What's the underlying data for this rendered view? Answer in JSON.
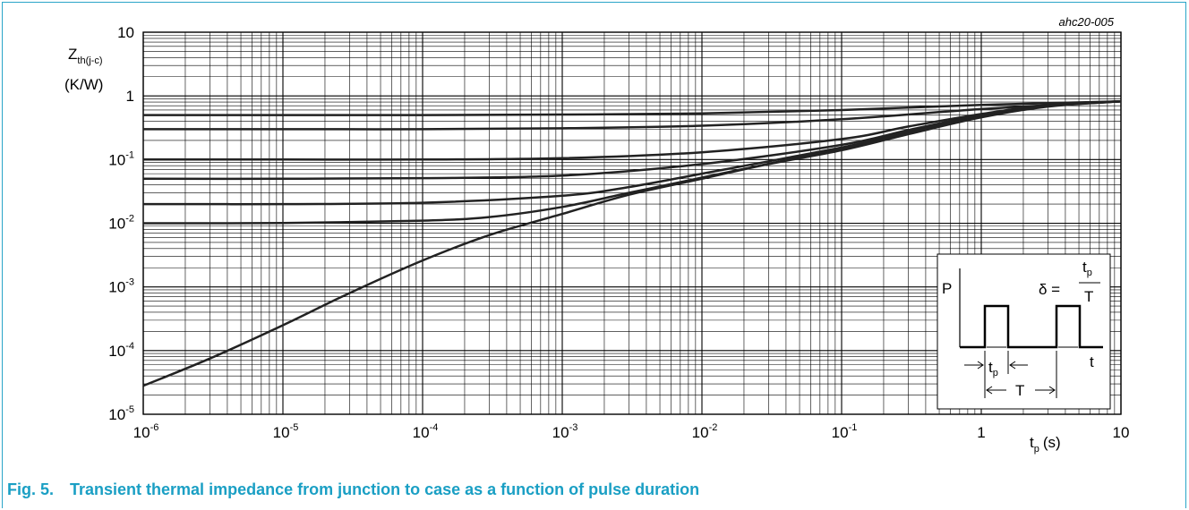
{
  "figure": {
    "ref": "ahc20-005",
    "caption_number": "Fig. 5.",
    "caption_text": "Transient thermal impedance from junction to case as a function of pulse duration"
  },
  "chart_data": {
    "type": "line",
    "title": "",
    "ylabel": "Zth(j-c)",
    "ylabel_main": "Z",
    "ylabel_sub": "th(j-c)",
    "yunit": "(K/W)",
    "xlabel_main": "t",
    "xlabel_sub": "p",
    "xunit": "(s)",
    "xscale": "log",
    "yscale": "log",
    "xlim": [
      1e-06,
      10
    ],
    "ylim": [
      1e-05,
      10
    ],
    "grid": true,
    "x_ticks": [
      {
        "value": 1e-06,
        "base": "10",
        "exp": "-6"
      },
      {
        "value": 1e-05,
        "base": "10",
        "exp": "-5"
      },
      {
        "value": 0.0001,
        "base": "10",
        "exp": "-4"
      },
      {
        "value": 0.001,
        "base": "10",
        "exp": "-3"
      },
      {
        "value": 0.01,
        "base": "10",
        "exp": "-2"
      },
      {
        "value": 0.1,
        "base": "10",
        "exp": "-1"
      },
      {
        "value": 1,
        "base": "1",
        "exp": ""
      },
      {
        "value": 10,
        "base": "10",
        "exp": ""
      }
    ],
    "y_ticks": [
      {
        "value": 1e-05,
        "base": "10",
        "exp": "-5"
      },
      {
        "value": 0.0001,
        "base": "10",
        "exp": "-4"
      },
      {
        "value": 0.001,
        "base": "10",
        "exp": "-3"
      },
      {
        "value": 0.01,
        "base": "10",
        "exp": "-2"
      },
      {
        "value": 0.1,
        "base": "10",
        "exp": "-1"
      },
      {
        "value": 1,
        "base": "1",
        "exp": ""
      },
      {
        "value": 10,
        "base": "10",
        "exp": ""
      }
    ],
    "series": [
      {
        "x": [
          1e-06,
          1e-05,
          0.0001,
          0.001,
          0.01,
          0.1,
          1,
          10
        ],
        "y": [
          0.5,
          0.5,
          0.5,
          0.51,
          0.53,
          0.6,
          0.72,
          0.82
        ]
      },
      {
        "x": [
          1e-06,
          1e-05,
          0.0001,
          0.001,
          0.01,
          0.1,
          1,
          10
        ],
        "y": [
          0.3,
          0.3,
          0.3,
          0.31,
          0.34,
          0.43,
          0.62,
          0.82
        ]
      },
      {
        "x": [
          1e-06,
          1e-05,
          0.0001,
          0.001,
          0.01,
          0.1,
          0.3,
          1,
          3,
          10
        ],
        "y": [
          0.1,
          0.1,
          0.1,
          0.105,
          0.13,
          0.21,
          0.33,
          0.52,
          0.72,
          0.82
        ]
      },
      {
        "x": [
          1e-06,
          1e-05,
          0.0001,
          0.001,
          0.01,
          0.1,
          0.3,
          1,
          3,
          10
        ],
        "y": [
          0.05,
          0.05,
          0.051,
          0.056,
          0.085,
          0.17,
          0.29,
          0.5,
          0.71,
          0.82
        ]
      },
      {
        "x": [
          1e-06,
          1e-05,
          0.0001,
          0.001,
          0.003,
          0.01,
          0.1,
          0.3,
          1,
          3,
          10
        ],
        "y": [
          0.02,
          0.02,
          0.021,
          0.027,
          0.037,
          0.06,
          0.155,
          0.27,
          0.48,
          0.7,
          0.82
        ]
      },
      {
        "x": [
          1e-06,
          1e-05,
          0.0001,
          0.0003,
          0.001,
          0.003,
          0.01,
          0.1,
          0.3,
          1,
          3,
          10
        ],
        "y": [
          0.01,
          0.0101,
          0.011,
          0.0125,
          0.018,
          0.03,
          0.052,
          0.15,
          0.26,
          0.47,
          0.69,
          0.82
        ]
      },
      {
        "x": [
          1e-06,
          3e-06,
          1e-05,
          3e-05,
          0.0001,
          0.0003,
          0.001,
          0.003,
          0.01,
          0.03,
          0.1,
          0.3,
          1,
          3,
          10
        ],
        "y": [
          2.8e-05,
          7.5e-05,
          0.00025,
          0.0008,
          0.0026,
          0.0065,
          0.014,
          0.028,
          0.05,
          0.085,
          0.14,
          0.25,
          0.46,
          0.68,
          0.82
        ]
      }
    ],
    "inset": {
      "P_label": "P",
      "t_label": "t",
      "tp_main": "t",
      "tp_sub": "p",
      "T_label": "T",
      "delta_label": "δ ="
    }
  }
}
